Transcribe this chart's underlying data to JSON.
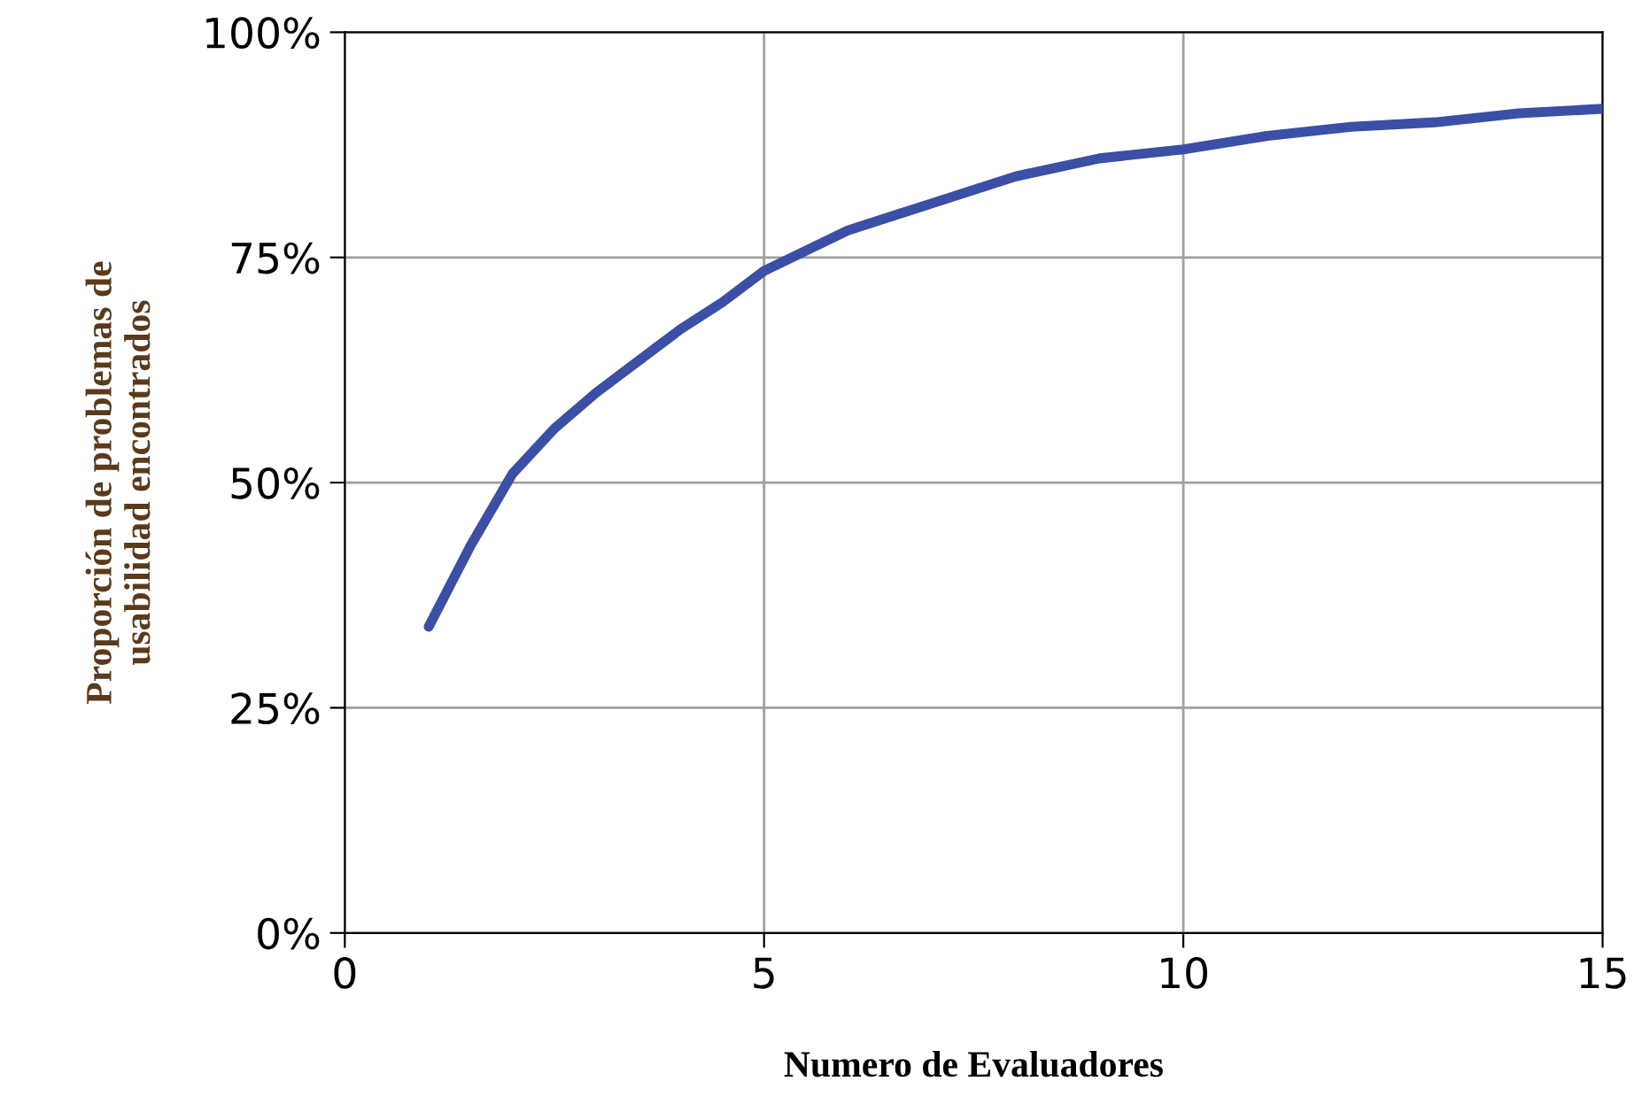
{
  "chart_data": {
    "type": "line",
    "xlabel": "Numero de Evaluadores",
    "ylabel": "Proporción de problemas de\nusabilidad encontrados",
    "x": [
      1,
      1.5,
      2,
      2.5,
      3,
      3.5,
      4,
      4.5,
      5,
      6,
      7,
      8,
      9,
      10,
      11,
      12,
      13,
      14,
      15
    ],
    "series": [
      {
        "color": "#3c4fa6",
        "values": [
          34,
          43,
          51,
          56,
          60,
          63.5,
          67,
          70,
          73.5,
          78,
          81,
          84,
          86,
          87,
          88.5,
          89.5,
          90,
          91,
          91.5
        ]
      }
    ],
    "xlim": [
      0,
      15
    ],
    "xticks": [
      0,
      5,
      10,
      15
    ],
    "ylim": [
      0,
      100
    ],
    "yticks": [
      {
        "value": 0,
        "label": "0%"
      },
      {
        "value": 25,
        "label": "25%"
      },
      {
        "value": 50,
        "label": "50%"
      },
      {
        "value": 75,
        "label": "75%"
      },
      {
        "value": 100,
        "label": "100%"
      }
    ],
    "grid": true,
    "marker": "none",
    "line_style": "solid"
  }
}
